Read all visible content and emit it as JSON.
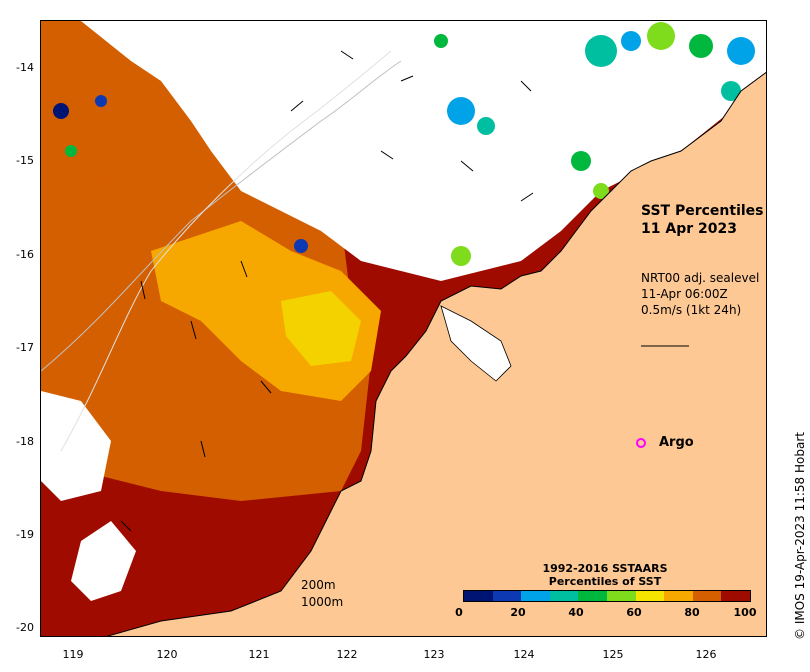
{
  "map": {
    "title_line1": "SST Percentiles",
    "title_line2": "11 Apr 2023",
    "current_label": "NRT00 adj. sealevel",
    "current_time": "11-Apr 06:00Z",
    "current_scale": "0.5m/s (1kt 24h)",
    "argo_label": "Argo",
    "bathy_200": "200m",
    "bathy_1000": "1000m",
    "credit": "© IMOS 19-Apr-2023 11:58 Hobart",
    "land_color": "#fdc894",
    "coast_color": "#000000",
    "argo_color": "#ff00ff"
  },
  "axes": {
    "lat_labels": [
      "-14",
      "-15",
      "-16",
      "-17",
      "-18",
      "-19",
      "-20"
    ],
    "lon_labels": [
      "119",
      "120",
      "121",
      "122",
      "123",
      "124",
      "125",
      "126"
    ]
  },
  "colorbar": {
    "title_line1": "1992-2016 SSTAARS",
    "title_line2": "Percentiles of SST",
    "tick_labels": [
      "0",
      "20",
      "40",
      "60",
      "80",
      "100"
    ],
    "colors": [
      "#001573",
      "#0d39b3",
      "#00a2e8",
      "#00bfa0",
      "#00b83d",
      "#7fdc1c",
      "#f4e400",
      "#f6a800",
      "#d45f00",
      "#a00b00"
    ]
  }
}
